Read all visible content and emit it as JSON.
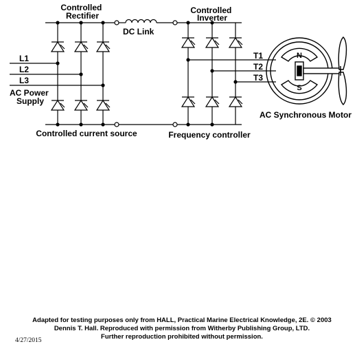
{
  "labels": {
    "controlled_rectifier": [
      "Controlled",
      "Rectifier"
    ],
    "dc_link": "DC Link",
    "controlled_inverter": [
      "Controlled",
      "Inverter"
    ],
    "l1": "L1",
    "l2": "L2",
    "l3": "L3",
    "ac_power_supply": [
      "AC Power",
      "Supply"
    ],
    "controlled_current_source": "Controlled current source",
    "frequency_controller": "Frequency controller",
    "t1": "T1",
    "t2": "T2",
    "t3": "T3",
    "north_pole": "N",
    "south_pole": "S",
    "ac_synchronous_motor": "AC Synchronous Motor"
  },
  "credit": [
    "Adapted for testing purposes only from HALL, Practical Marine Electrical Knowledge, 2E. © 2003",
    "Dennis T. Hall. Reproduced with permission from Witherby Publishing Group, LTD.",
    "Further reproduction prohibited without permission."
  ],
  "date": "4/27/2015"
}
